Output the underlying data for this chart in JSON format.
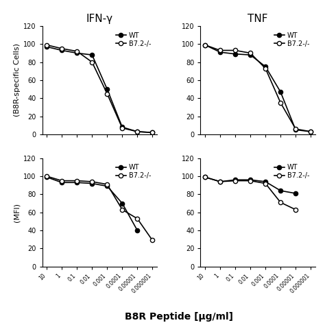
{
  "x_values": [
    10,
    1,
    0.1,
    0.01,
    0.001,
    0.0001,
    1e-05,
    1e-06
  ],
  "x_labels": [
    "10",
    "1",
    "0.1",
    "0.01",
    "0.001",
    "0.0001",
    "0.00001",
    "0.000001"
  ],
  "top_left_WT": [
    97,
    93,
    90,
    88,
    50,
    8,
    3,
    2
  ],
  "top_left_B7": [
    99,
    95,
    92,
    80,
    45,
    7,
    3,
    2
  ],
  "top_right_WT": [
    99,
    91,
    89,
    88,
    75,
    47,
    5,
    3
  ],
  "top_right_B7": [
    99,
    93,
    93,
    90,
    73,
    35,
    6,
    3
  ],
  "bot_left_WT": [
    99,
    93,
    93,
    92,
    89,
    70,
    40,
    null
  ],
  "bot_left_B7": [
    100,
    95,
    95,
    94,
    91,
    63,
    53,
    29
  ],
  "bot_right_WT": [
    99,
    94,
    96,
    96,
    94,
    84,
    81,
    null
  ],
  "bot_right_B7": [
    99,
    94,
    95,
    95,
    92,
    71,
    63,
    null
  ],
  "title_left": "IFN-γ",
  "title_right": "TNF",
  "ylabel_top": "(B8R-specific Cells)",
  "ylabel_bot": "(MFI)",
  "xlabel": "B8R Peptide [μg/ml]",
  "legend_wt": "WT",
  "legend_b7": "B7.2-/-",
  "ylim": [
    0,
    120
  ],
  "yticks": [
    0,
    20,
    40,
    60,
    80,
    100,
    120
  ]
}
